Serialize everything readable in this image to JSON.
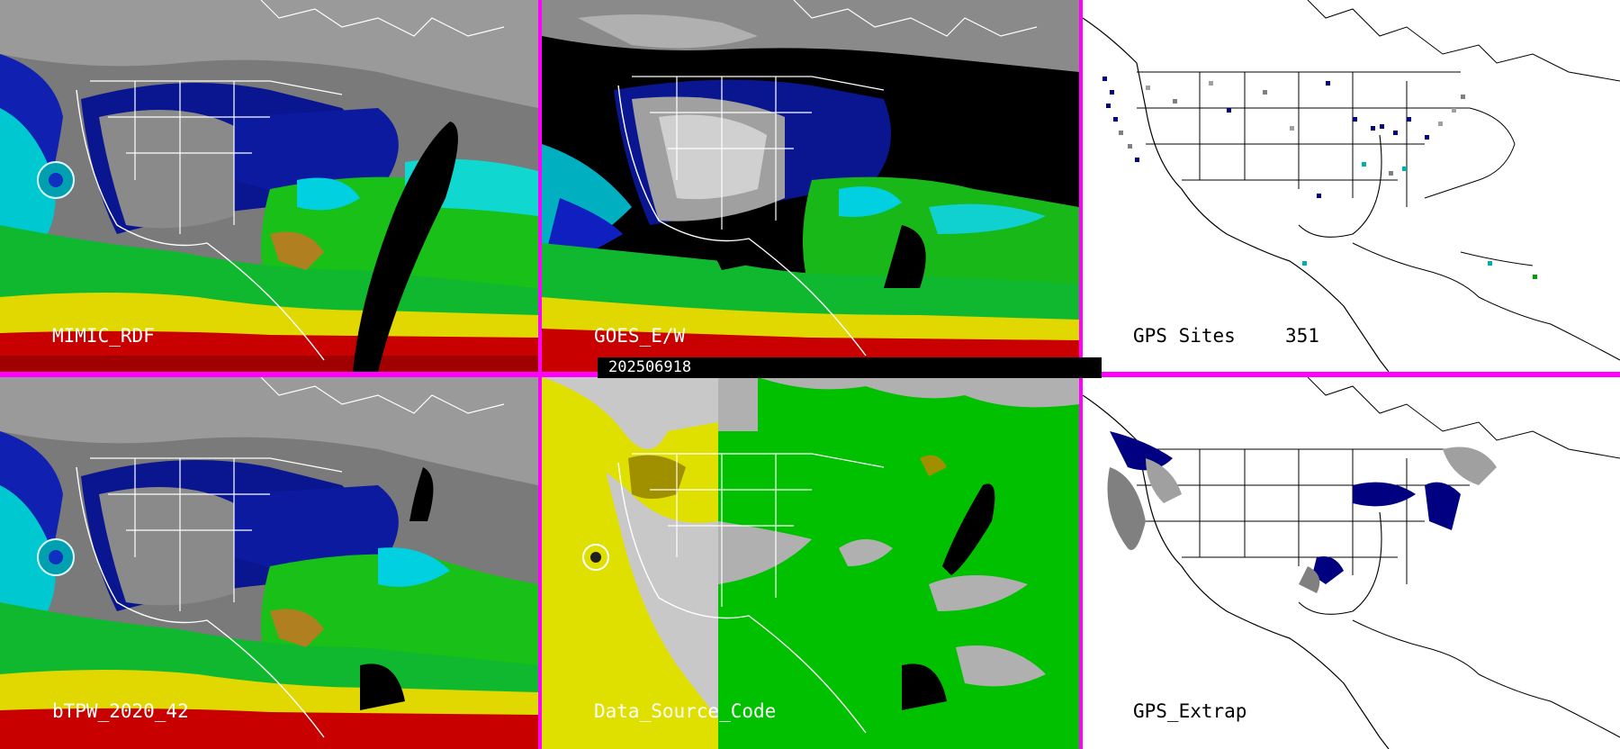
{
  "timestamp": "202506918",
  "panels": {
    "mimic_rdf": {
      "label": "MIMIC_RDF"
    },
    "goes_ew": {
      "label": "GOES_E/W"
    },
    "gps_sites": {
      "label": "GPS Sites",
      "count": "351"
    },
    "btpw": {
      "label": "bTPW_2020_42"
    },
    "data_source": {
      "label": "Data_Source_Code"
    },
    "gps_extrap": {
      "label": "GPS_Extrap"
    }
  },
  "colors": {
    "panel_border": "#ff00ff",
    "dry_gray": "#a8a8a8",
    "dark_blue": "#000090",
    "blue": "#1010c0",
    "cyan": "#00d8e0",
    "green": "#10c010",
    "yellow": "#e8e000",
    "orange": "#e08000",
    "red": "#c80000",
    "ds_gray": "#b0b0b0",
    "ds_yellow": "#e0e000",
    "ds_green": "#00c000"
  }
}
